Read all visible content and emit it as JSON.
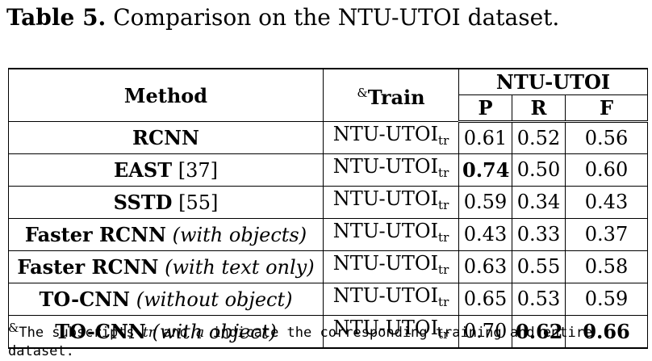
{
  "caption": {
    "label": "Table 5.",
    "text": "Comparison on the NTU-UTOI dataset."
  },
  "header": {
    "method": "Method",
    "train_mark": "&",
    "train": "Train",
    "dataset": "NTU-UTOI",
    "p": "P",
    "r": "R",
    "f": "F"
  },
  "rows": [
    {
      "name": "RCNN",
      "suffix": "",
      "ref": "",
      "train": "NTU-UTOI",
      "train_sub": "tr",
      "p": "0.61",
      "r": "0.52",
      "f": "0.56"
    },
    {
      "name": "EAST",
      "suffix": "",
      "ref": "[37]",
      "train": "NTU-UTOI",
      "train_sub": "tr",
      "p": "0.74",
      "r": "0.50",
      "f": "0.60"
    },
    {
      "name": "SSTD",
      "suffix": "",
      "ref": "[55]",
      "train": "NTU-UTOI",
      "train_sub": "tr",
      "p": "0.59",
      "r": "0.34",
      "f": "0.43"
    },
    {
      "name": "Faster RCNN",
      "suffix": "(with objects)",
      "ref": "",
      "train": "NTU-UTOI",
      "train_sub": "tr",
      "p": "0.43",
      "r": "0.33",
      "f": "0.37"
    },
    {
      "name": "Faster RCNN",
      "suffix": "(with text only)",
      "ref": "",
      "train": "NTU-UTOI",
      "train_sub": "tr",
      "p": "0.63",
      "r": "0.55",
      "f": "0.58"
    },
    {
      "name": "TO-CNN",
      "suffix": "(without object)",
      "ref": "",
      "train": "NTU-UTOI",
      "train_sub": "tr",
      "p": "0.65",
      "r": "0.53",
      "f": "0.59"
    },
    {
      "name": "TO-CNN",
      "suffix": "(with object)",
      "ref": "",
      "train": "NTU-UTOI",
      "train_sub": "tr",
      "p": "0.70",
      "r": "0.62",
      "f": "0.66"
    }
  ],
  "footnote": {
    "mark": "&",
    "before": "The subscripts ",
    "tr": "tr",
    "middle": " and ",
    "a": "a",
    "after": " indicate the corresponding training and entire dataset."
  }
}
